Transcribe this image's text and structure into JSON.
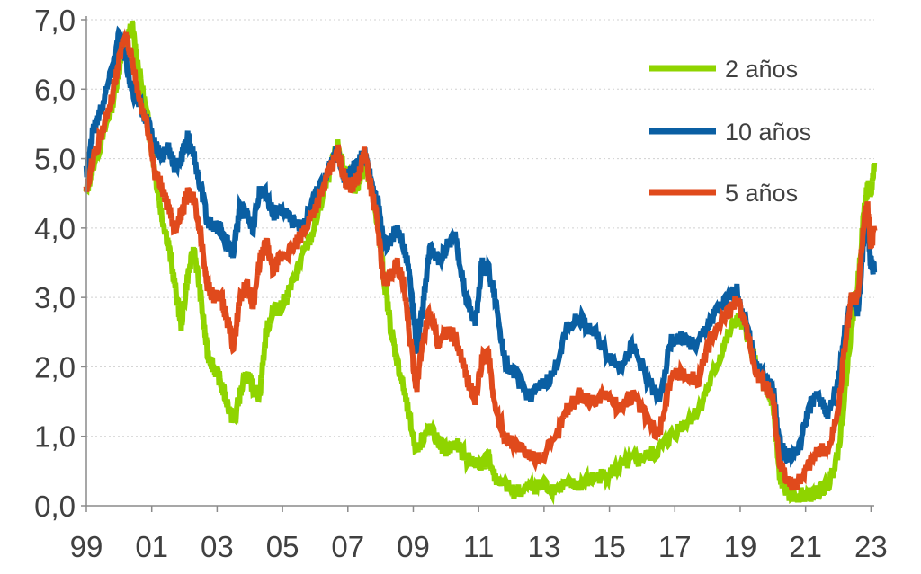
{
  "chart_data": {
    "type": "line",
    "title": "",
    "xlabel": "",
    "ylabel": "",
    "ylim": [
      0,
      7
    ],
    "xlim": [
      1999.0,
      2023.1
    ],
    "y_ticks": [
      0,
      1,
      2,
      3,
      4,
      5,
      6,
      7
    ],
    "y_tick_labels": [
      "0,0",
      "1,0",
      "2,0",
      "3,0",
      "4,0",
      "5,0",
      "6,0",
      "7,0"
    ],
    "x_ticks": [
      1999,
      2001,
      2003,
      2005,
      2007,
      2009,
      2011,
      2013,
      2015,
      2017,
      2019,
      2021,
      2023
    ],
    "x_tick_labels": [
      "99",
      "01",
      "03",
      "05",
      "07",
      "09",
      "11",
      "13",
      "15",
      "17",
      "19",
      "21",
      "23"
    ],
    "grid": "horizontal-dotted",
    "legend_position": "top-right",
    "series": [
      {
        "name": "2 años",
        "color": "#8fd400",
        "points": [
          [
            1999.0,
            4.5
          ],
          [
            1999.2,
            4.9
          ],
          [
            1999.5,
            5.3
          ],
          [
            1999.8,
            5.8
          ],
          [
            2000.0,
            6.3
          ],
          [
            2000.2,
            6.7
          ],
          [
            2000.4,
            6.9
          ],
          [
            2000.6,
            6.3
          ],
          [
            2000.9,
            5.5
          ],
          [
            2001.1,
            4.8
          ],
          [
            2001.3,
            4.2
          ],
          [
            2001.5,
            3.8
          ],
          [
            2001.7,
            3.2
          ],
          [
            2001.9,
            2.6
          ],
          [
            2002.1,
            3.3
          ],
          [
            2002.3,
            3.7
          ],
          [
            2002.5,
            3.0
          ],
          [
            2002.7,
            2.2
          ],
          [
            2002.9,
            2.0
          ],
          [
            2003.1,
            1.8
          ],
          [
            2003.3,
            1.5
          ],
          [
            2003.5,
            1.2
          ],
          [
            2003.7,
            1.6
          ],
          [
            2003.9,
            1.9
          ],
          [
            2004.1,
            1.7
          ],
          [
            2004.3,
            1.6
          ],
          [
            2004.5,
            2.5
          ],
          [
            2004.7,
            2.8
          ],
          [
            2005.0,
            2.9
          ],
          [
            2005.3,
            3.2
          ],
          [
            2005.6,
            3.6
          ],
          [
            2005.9,
            3.9
          ],
          [
            2006.2,
            4.4
          ],
          [
            2006.5,
            4.9
          ],
          [
            2006.7,
            5.2
          ],
          [
            2006.9,
            4.8
          ],
          [
            2007.1,
            4.6
          ],
          [
            2007.3,
            4.6
          ],
          [
            2007.5,
            4.9
          ],
          [
            2007.7,
            4.6
          ],
          [
            2007.9,
            4.1
          ],
          [
            2008.1,
            3.3
          ],
          [
            2008.3,
            2.6
          ],
          [
            2008.5,
            2.1
          ],
          [
            2008.7,
            1.7
          ],
          [
            2008.9,
            1.2
          ],
          [
            2009.1,
            0.8
          ],
          [
            2009.3,
            1.0
          ],
          [
            2009.5,
            1.1
          ],
          [
            2009.8,
            0.9
          ],
          [
            2010.0,
            0.8
          ],
          [
            2010.3,
            0.9
          ],
          [
            2010.6,
            0.7
          ],
          [
            2010.9,
            0.6
          ],
          [
            2011.1,
            0.6
          ],
          [
            2011.3,
            0.7
          ],
          [
            2011.5,
            0.4
          ],
          [
            2011.8,
            0.3
          ],
          [
            2012.1,
            0.2
          ],
          [
            2012.5,
            0.25
          ],
          [
            2012.9,
            0.3
          ],
          [
            2013.3,
            0.25
          ],
          [
            2013.7,
            0.3
          ],
          [
            2014.1,
            0.3
          ],
          [
            2014.5,
            0.4
          ],
          [
            2014.9,
            0.45
          ],
          [
            2015.3,
            0.55
          ],
          [
            2015.7,
            0.65
          ],
          [
            2016.1,
            0.7
          ],
          [
            2016.5,
            0.8
          ],
          [
            2016.9,
            1.0
          ],
          [
            2017.3,
            1.2
          ],
          [
            2017.7,
            1.35
          ],
          [
            2018.1,
            1.8
          ],
          [
            2018.5,
            2.3
          ],
          [
            2018.9,
            2.7
          ],
          [
            2019.2,
            2.5
          ],
          [
            2019.5,
            2.0
          ],
          [
            2019.8,
            1.6
          ],
          [
            2020.0,
            1.5
          ],
          [
            2020.2,
            0.4
          ],
          [
            2020.5,
            0.15
          ],
          [
            2020.8,
            0.15
          ],
          [
            2021.1,
            0.15
          ],
          [
            2021.4,
            0.2
          ],
          [
            2021.7,
            0.3
          ],
          [
            2022.0,
            0.8
          ],
          [
            2022.2,
            1.6
          ],
          [
            2022.4,
            2.6
          ],
          [
            2022.6,
            3.2
          ],
          [
            2022.8,
            4.3
          ],
          [
            2022.9,
            4.6
          ],
          [
            2023.0,
            4.5
          ],
          [
            2023.1,
            4.9
          ]
        ]
      },
      {
        "name": "10 años",
        "color": "#0a5fa3",
        "points": [
          [
            1999.0,
            4.8
          ],
          [
            1999.2,
            5.4
          ],
          [
            1999.5,
            5.8
          ],
          [
            1999.8,
            6.3
          ],
          [
            2000.0,
            6.8
          ],
          [
            2000.2,
            6.4
          ],
          [
            2000.4,
            6.0
          ],
          [
            2000.6,
            5.8
          ],
          [
            2000.9,
            5.5
          ],
          [
            2001.1,
            5.2
          ],
          [
            2001.3,
            5.0
          ],
          [
            2001.5,
            5.2
          ],
          [
            2001.7,
            4.9
          ],
          [
            2001.9,
            5.0
          ],
          [
            2002.1,
            5.3
          ],
          [
            2002.3,
            5.0
          ],
          [
            2002.5,
            4.6
          ],
          [
            2002.7,
            4.1
          ],
          [
            2002.9,
            4.0
          ],
          [
            2003.1,
            4.0
          ],
          [
            2003.3,
            3.8
          ],
          [
            2003.5,
            3.6
          ],
          [
            2003.7,
            4.3
          ],
          [
            2003.9,
            4.2
          ],
          [
            2004.1,
            4.0
          ],
          [
            2004.3,
            4.5
          ],
          [
            2004.5,
            4.5
          ],
          [
            2004.7,
            4.2
          ],
          [
            2005.0,
            4.3
          ],
          [
            2005.3,
            4.1
          ],
          [
            2005.6,
            4.0
          ],
          [
            2005.9,
            4.4
          ],
          [
            2006.2,
            4.6
          ],
          [
            2006.5,
            5.0
          ],
          [
            2006.7,
            5.1
          ],
          [
            2006.9,
            4.7
          ],
          [
            2007.1,
            4.8
          ],
          [
            2007.3,
            4.9
          ],
          [
            2007.5,
            5.1
          ],
          [
            2007.7,
            4.7
          ],
          [
            2007.9,
            4.4
          ],
          [
            2008.1,
            3.8
          ],
          [
            2008.3,
            3.8
          ],
          [
            2008.5,
            4.0
          ],
          [
            2008.7,
            3.8
          ],
          [
            2008.9,
            3.3
          ],
          [
            2009.1,
            2.3
          ],
          [
            2009.3,
            2.9
          ],
          [
            2009.5,
            3.7
          ],
          [
            2009.8,
            3.5
          ],
          [
            2010.0,
            3.7
          ],
          [
            2010.3,
            3.9
          ],
          [
            2010.6,
            3.0
          ],
          [
            2010.9,
            2.6
          ],
          [
            2011.1,
            3.5
          ],
          [
            2011.3,
            3.4
          ],
          [
            2011.5,
            3.0
          ],
          [
            2011.8,
            2.1
          ],
          [
            2012.1,
            1.9
          ],
          [
            2012.5,
            1.6
          ],
          [
            2012.9,
            1.7
          ],
          [
            2013.3,
            1.9
          ],
          [
            2013.7,
            2.6
          ],
          [
            2014.1,
            2.7
          ],
          [
            2014.5,
            2.5
          ],
          [
            2014.9,
            2.2
          ],
          [
            2015.3,
            2.0
          ],
          [
            2015.7,
            2.3
          ],
          [
            2016.1,
            1.9
          ],
          [
            2016.5,
            1.5
          ],
          [
            2016.9,
            2.4
          ],
          [
            2017.3,
            2.4
          ],
          [
            2017.7,
            2.3
          ],
          [
            2018.1,
            2.7
          ],
          [
            2018.5,
            2.9
          ],
          [
            2018.9,
            3.1
          ],
          [
            2019.2,
            2.6
          ],
          [
            2019.5,
            2.0
          ],
          [
            2019.8,
            1.8
          ],
          [
            2020.0,
            1.7
          ],
          [
            2020.2,
            0.9
          ],
          [
            2020.5,
            0.7
          ],
          [
            2020.8,
            0.8
          ],
          [
            2021.1,
            1.4
          ],
          [
            2021.4,
            1.6
          ],
          [
            2021.7,
            1.3
          ],
          [
            2022.0,
            1.8
          ],
          [
            2022.2,
            2.5
          ],
          [
            2022.4,
            3.0
          ],
          [
            2022.6,
            2.8
          ],
          [
            2022.8,
            3.9
          ],
          [
            2022.9,
            4.0
          ],
          [
            2023.0,
            3.5
          ],
          [
            2023.1,
            3.4
          ]
        ]
      },
      {
        "name": "5 años",
        "color": "#e04a1c",
        "points": [
          [
            1999.0,
            4.5
          ],
          [
            1999.2,
            5.0
          ],
          [
            1999.5,
            5.4
          ],
          [
            1999.8,
            5.9
          ],
          [
            2000.0,
            6.4
          ],
          [
            2000.2,
            6.8
          ],
          [
            2000.4,
            6.4
          ],
          [
            2000.6,
            5.9
          ],
          [
            2000.9,
            5.4
          ],
          [
            2001.1,
            4.8
          ],
          [
            2001.3,
            4.6
          ],
          [
            2001.5,
            4.3
          ],
          [
            2001.7,
            4.0
          ],
          [
            2001.9,
            4.2
          ],
          [
            2002.1,
            4.5
          ],
          [
            2002.3,
            4.4
          ],
          [
            2002.5,
            3.9
          ],
          [
            2002.7,
            3.2
          ],
          [
            2002.9,
            3.0
          ],
          [
            2003.1,
            3.0
          ],
          [
            2003.3,
            2.7
          ],
          [
            2003.5,
            2.3
          ],
          [
            2003.7,
            3.0
          ],
          [
            2003.9,
            3.2
          ],
          [
            2004.1,
            2.9
          ],
          [
            2004.3,
            3.5
          ],
          [
            2004.5,
            3.8
          ],
          [
            2004.7,
            3.4
          ],
          [
            2005.0,
            3.6
          ],
          [
            2005.3,
            3.7
          ],
          [
            2005.6,
            3.9
          ],
          [
            2005.9,
            4.2
          ],
          [
            2006.2,
            4.5
          ],
          [
            2006.5,
            4.9
          ],
          [
            2006.7,
            5.1
          ],
          [
            2006.9,
            4.7
          ],
          [
            2007.1,
            4.6
          ],
          [
            2007.3,
            4.7
          ],
          [
            2007.5,
            5.1
          ],
          [
            2007.7,
            4.6
          ],
          [
            2007.9,
            4.1
          ],
          [
            2008.1,
            3.2
          ],
          [
            2008.3,
            3.3
          ],
          [
            2008.5,
            3.5
          ],
          [
            2008.7,
            3.2
          ],
          [
            2008.9,
            2.4
          ],
          [
            2009.1,
            1.7
          ],
          [
            2009.3,
            2.4
          ],
          [
            2009.5,
            2.8
          ],
          [
            2009.8,
            2.3
          ],
          [
            2010.0,
            2.5
          ],
          [
            2010.3,
            2.4
          ],
          [
            2010.6,
            1.9
          ],
          [
            2010.9,
            1.5
          ],
          [
            2011.1,
            2.1
          ],
          [
            2011.3,
            2.2
          ],
          [
            2011.5,
            1.4
          ],
          [
            2011.8,
            1.0
          ],
          [
            2012.1,
            0.9
          ],
          [
            2012.5,
            0.7
          ],
          [
            2012.9,
            0.7
          ],
          [
            2013.3,
            0.9
          ],
          [
            2013.7,
            1.4
          ],
          [
            2014.1,
            1.6
          ],
          [
            2014.5,
            1.5
          ],
          [
            2014.9,
            1.6
          ],
          [
            2015.3,
            1.4
          ],
          [
            2015.7,
            1.6
          ],
          [
            2016.1,
            1.3
          ],
          [
            2016.5,
            1.0
          ],
          [
            2016.9,
            1.9
          ],
          [
            2017.3,
            1.9
          ],
          [
            2017.7,
            1.8
          ],
          [
            2018.1,
            2.4
          ],
          [
            2018.5,
            2.7
          ],
          [
            2018.9,
            3.0
          ],
          [
            2019.2,
            2.5
          ],
          [
            2019.5,
            1.9
          ],
          [
            2019.8,
            1.7
          ],
          [
            2020.0,
            1.6
          ],
          [
            2020.2,
            0.6
          ],
          [
            2020.5,
            0.3
          ],
          [
            2020.8,
            0.35
          ],
          [
            2021.1,
            0.6
          ],
          [
            2021.4,
            0.8
          ],
          [
            2021.7,
            0.8
          ],
          [
            2022.0,
            1.4
          ],
          [
            2022.2,
            2.3
          ],
          [
            2022.4,
            3.0
          ],
          [
            2022.6,
            3.0
          ],
          [
            2022.8,
            4.2
          ],
          [
            2022.9,
            4.3
          ],
          [
            2023.0,
            3.7
          ],
          [
            2023.1,
            4.0
          ]
        ]
      }
    ]
  }
}
